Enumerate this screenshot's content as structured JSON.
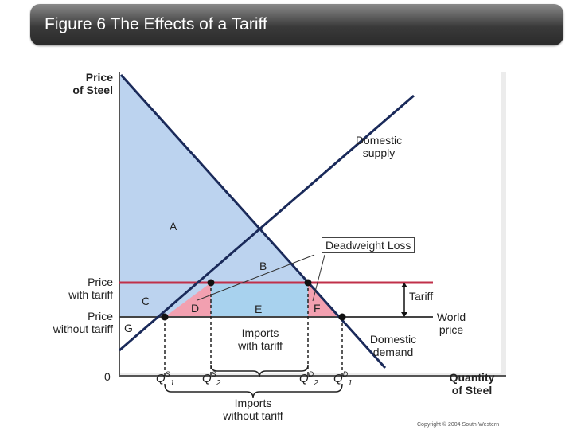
{
  "title": "Figure 6 The Effects of a Tariff",
  "axes": {
    "y_label_line1": "Price",
    "y_label_line2": "of Steel",
    "x_label_line1": "Quantity",
    "x_label_line2": "of Steel",
    "origin": "0"
  },
  "curves": {
    "supply_line1": "Domestic",
    "supply_line2": "supply",
    "demand_line1": "Domestic",
    "demand_line2": "demand"
  },
  "prices": {
    "with_tariff_line1": "Price",
    "with_tariff_line2": "with tariff",
    "without_tariff_line1": "Price",
    "without_tariff_line2": "without tariff",
    "world_line1": "World",
    "world_line2": "price",
    "tariff": "Tariff"
  },
  "areas": {
    "a": "A",
    "b": "B",
    "c": "C",
    "d": "D",
    "e": "E",
    "f": "F",
    "g": "G",
    "deadweight_loss": "Deadweight Loss"
  },
  "quantities": {
    "q1s_main": "Q",
    "q1s_sup": "S",
    "q1s_sub": "1",
    "q2s_main": "Q",
    "q2s_sup": "S",
    "q2s_sub": "2",
    "q2d_main": "Q",
    "q2d_sup": "D",
    "q2d_sub": "2",
    "q1d_main": "Q",
    "q1d_sup": "D",
    "q1d_sub": "1"
  },
  "imports": {
    "with_tariff_line1": "Imports",
    "with_tariff_line2": "with tariff",
    "without_tariff_line1": "Imports",
    "without_tariff_line2": "without tariff"
  },
  "copyright": "Copyright © 2004 South-Western",
  "colors": {
    "consumer_surplus": "#c5d9f1",
    "triangle_pink": "#f2a0b0",
    "revenue_blue": "#a8d2ee",
    "tariff_line": "#c0304a",
    "axis": "#555555"
  }
}
